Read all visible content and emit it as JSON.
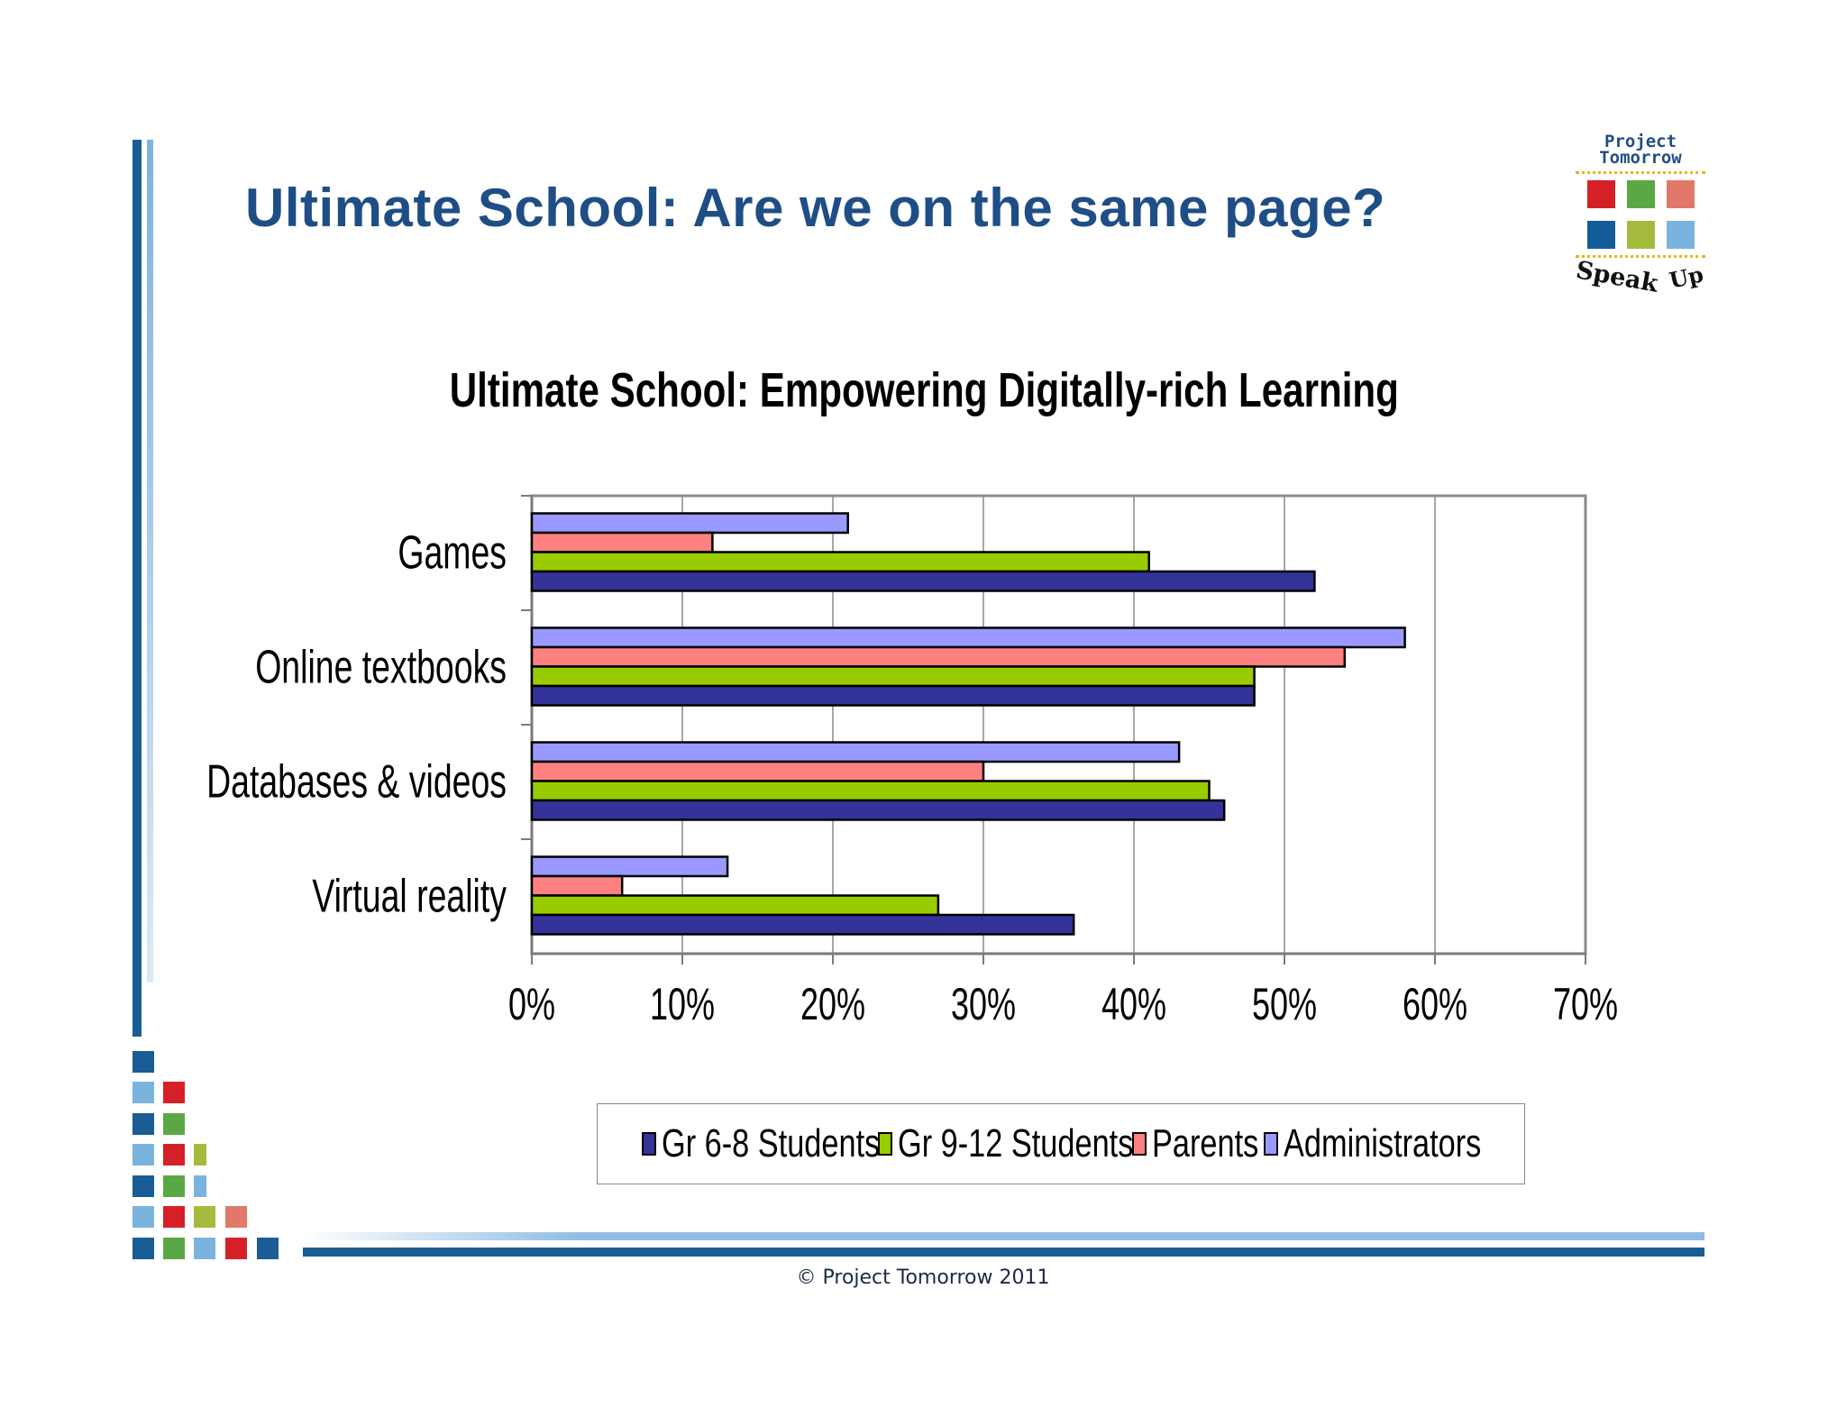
{
  "slide": {
    "title": "Ultimate School:  Are we on the same page?",
    "footer": "© Project Tomorrow 2011"
  },
  "logo": {
    "line1": "Project",
    "line2": "Tomorrow",
    "tagline_word1": "Speak",
    "tagline_word2": "Up",
    "colors": [
      "#d62027",
      "#5aa845",
      "#e0796a",
      "#135c99",
      "#a4bb3e",
      "#7bb3df"
    ]
  },
  "chart_data": {
    "type": "bar",
    "orientation": "horizontal",
    "title": "Ultimate School:  Empowering Digitally-rich Learning",
    "categories": [
      "Games",
      "Online textbooks",
      "Databases & videos",
      "Virtual reality"
    ],
    "series": [
      {
        "name": "Gr 6-8 Students",
        "color": "#333399",
        "values": [
          52,
          48,
          46,
          36
        ]
      },
      {
        "name": "Gr 9-12 Students",
        "color": "#99cc00",
        "values": [
          41,
          48,
          45,
          27
        ]
      },
      {
        "name": "Parents",
        "color": "#ff8080",
        "values": [
          12,
          54,
          30,
          6
        ]
      },
      {
        "name": "Administrators",
        "color": "#9999ff",
        "values": [
          21,
          58,
          43,
          13
        ]
      }
    ],
    "x_ticks": [
      "0%",
      "10%",
      "20%",
      "30%",
      "40%",
      "50%",
      "60%",
      "70%"
    ],
    "xlim": [
      0,
      70
    ],
    "unit": "%",
    "grid": true,
    "legend_position": "bottom"
  }
}
